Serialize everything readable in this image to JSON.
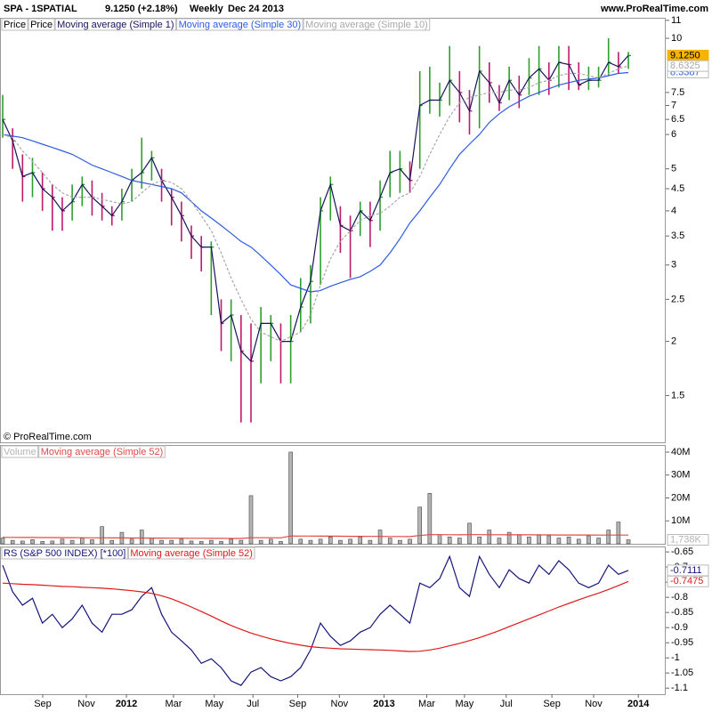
{
  "header": {
    "symbol": "SPA - 1SPATIAL",
    "quote": "9.1250 (+2.18%)",
    "period": "Weekly",
    "date": "Dec 24 2013",
    "site": "www.ProRealTime.com"
  },
  "chart_data": [
    {
      "type": "ohlc",
      "title": "Price",
      "log": true,
      "watermark": "© ProRealTime.com",
      "ylim": [
        1.17,
        11.15
      ],
      "yticks": [
        1.5,
        2,
        2.5,
        3,
        3.5,
        4,
        4.5,
        5,
        6,
        6.5,
        7,
        7.5,
        10,
        11
      ],
      "up_color": "#2e9e2e",
      "down_color": "#c0186e",
      "series": [
        {
          "name": "Price",
          "type": "ohlc",
          "high": [
            7.4,
            6.2,
            5.4,
            5.3,
            4.9,
            4.6,
            4.3,
            4.6,
            4.8,
            4.7,
            4.4,
            4.1,
            4.5,
            5.0,
            5.9,
            5.5,
            5.0,
            4.5,
            4.2,
            3.7,
            3.5,
            3.4,
            2.5,
            2.5,
            2.3,
            2.2,
            2.4,
            2.3,
            2.2,
            2.3,
            2.8,
            3.0,
            4.3,
            4.8,
            4.1,
            3.9,
            4.2,
            4.2,
            4.7,
            5.5,
            5.5,
            5.2,
            8.4,
            8.6,
            7.9,
            9.6,
            8.4,
            7.6,
            9.6,
            8.8,
            7.8,
            8.6,
            8.2,
            9.0,
            9.6,
            8.8,
            9.6,
            9.6,
            8.8,
            8.6,
            8.6,
            10.0,
            9.3,
            9.3
          ],
          "low": [
            5.9,
            5.0,
            4.2,
            4.3,
            4.0,
            3.6,
            3.6,
            3.8,
            4.1,
            3.9,
            3.8,
            3.7,
            3.8,
            4.2,
            4.5,
            4.7,
            4.2,
            3.7,
            3.4,
            3.1,
            2.9,
            2.3,
            1.9,
            1.8,
            1.3,
            1.3,
            1.6,
            1.8,
            1.6,
            1.6,
            2.1,
            2.2,
            2.7,
            3.8,
            3.2,
            2.8,
            3.5,
            3.3,
            3.6,
            4.3,
            4.4,
            4.4,
            5.0,
            6.7,
            6.6,
            7.0,
            6.4,
            6.0,
            6.2,
            7.1,
            6.8,
            7.2,
            6.9,
            7.4,
            7.4,
            7.4,
            7.7,
            7.6,
            7.6,
            7.6,
            7.7,
            8.2,
            8.3,
            8.5
          ],
          "values": [
            6.5,
            5.8,
            4.8,
            4.9,
            4.5,
            4.3,
            4.0,
            4.2,
            4.6,
            4.3,
            4.1,
            3.9,
            4.2,
            4.7,
            4.9,
            5.3,
            4.7,
            4.3,
            3.9,
            3.5,
            3.3,
            3.3,
            2.2,
            2.3,
            1.9,
            1.8,
            2.2,
            2.2,
            2.0,
            2.0,
            2.4,
            2.75,
            4.0,
            4.6,
            3.7,
            3.6,
            4.0,
            3.8,
            4.3,
            4.9,
            5.0,
            4.7,
            7.0,
            7.2,
            7.2,
            8.0,
            7.5,
            6.8,
            8.4,
            7.9,
            7.1,
            8.0,
            7.4,
            8.1,
            8.5,
            8.0,
            8.8,
            8.7,
            7.8,
            8.0,
            8.0,
            8.8,
            8.6,
            9.125
          ]
        },
        {
          "name": "Moving average (Simple 1)",
          "type": "line",
          "color": "#14145a",
          "tag": true,
          "tag_fill": "#f5b400",
          "last_label": "9.1250",
          "values": [
            6.5,
            5.8,
            4.8,
            4.9,
            4.5,
            4.3,
            4.0,
            4.2,
            4.6,
            4.3,
            4.1,
            3.9,
            4.2,
            4.7,
            4.9,
            5.3,
            4.7,
            4.3,
            3.9,
            3.5,
            3.3,
            3.3,
            2.2,
            2.3,
            1.9,
            1.8,
            2.2,
            2.2,
            2.0,
            2.0,
            2.4,
            2.75,
            4.0,
            4.6,
            3.7,
            3.6,
            4.0,
            3.8,
            4.3,
            4.9,
            5.0,
            4.7,
            7.0,
            7.2,
            7.2,
            8.0,
            7.5,
            6.8,
            8.4,
            7.9,
            7.1,
            8.0,
            7.4,
            8.1,
            8.5,
            8.0,
            8.8,
            8.7,
            7.8,
            8.0,
            8.0,
            8.8,
            8.6,
            9.125
          ]
        },
        {
          "name": "Moving average (Simple 30)",
          "type": "line",
          "color": "#2d5be3",
          "tag": true,
          "values": [
            6.0,
            5.95,
            5.9,
            5.8,
            5.7,
            5.6,
            5.5,
            5.4,
            5.25,
            5.1,
            5.0,
            4.9,
            4.8,
            4.7,
            4.65,
            4.6,
            4.55,
            4.5,
            4.4,
            4.2,
            4.0,
            3.85,
            3.7,
            3.55,
            3.4,
            3.3,
            3.15,
            3.0,
            2.85,
            2.7,
            2.65,
            2.6,
            2.62,
            2.68,
            2.73,
            2.78,
            2.82,
            2.9,
            3.0,
            3.2,
            3.45,
            3.75,
            4.0,
            4.3,
            4.6,
            5.0,
            5.4,
            5.7,
            6.0,
            6.4,
            6.7,
            6.95,
            7.15,
            7.35,
            7.5,
            7.65,
            7.8,
            7.9,
            8.0,
            8.05,
            8.1,
            8.2,
            8.3,
            8.3387
          ]
        },
        {
          "name": "Moving average (Simple 10)",
          "type": "line",
          "color": "#a8a8a8",
          "dash": true,
          "tag": true,
          "values": [
            6.0,
            5.9,
            5.5,
            5.2,
            4.9,
            4.6,
            4.4,
            4.3,
            4.3,
            4.3,
            4.25,
            4.2,
            4.15,
            4.2,
            4.4,
            4.6,
            4.7,
            4.65,
            4.5,
            4.2,
            3.9,
            3.6,
            3.2,
            2.8,
            2.5,
            2.25,
            2.1,
            2.05,
            2.0,
            2.05,
            2.1,
            2.3,
            2.7,
            3.1,
            3.4,
            3.6,
            3.8,
            3.9,
            3.95,
            4.1,
            4.3,
            4.4,
            4.8,
            5.4,
            6.0,
            6.6,
            7.1,
            7.3,
            7.4,
            7.5,
            7.5,
            7.6,
            7.6,
            7.7,
            7.9,
            8.0,
            8.2,
            8.3,
            8.3,
            8.2,
            8.1,
            8.3,
            8.5,
            8.6325
          ]
        }
      ]
    },
    {
      "type": "bar",
      "ylim": [
        0,
        43100000
      ],
      "yticks": [
        {
          "value": 10000000,
          "label": "10M"
        },
        {
          "value": 20000000,
          "label": "20M"
        },
        {
          "value": 30000000,
          "label": "30M"
        },
        {
          "value": 40000000,
          "label": "40M"
        }
      ],
      "series": [
        {
          "name": "Volume",
          "type": "bar",
          "color": "#b4b4b4",
          "tag": true,
          "last_label": "1,738K",
          "values": [
            2500000,
            1500000,
            1200000,
            1800000,
            1000000,
            1200000,
            2000000,
            1500000,
            2500000,
            1800000,
            7500000,
            1500000,
            5000000,
            2000000,
            6000000,
            2500000,
            1500000,
            1500000,
            2000000,
            1200000,
            1000000,
            1500000,
            1000000,
            2000000,
            1500000,
            21000000,
            1500000,
            2000000,
            1000000,
            40000000,
            2000000,
            1500000,
            2000000,
            3000000,
            1500000,
            2000000,
            3000000,
            1500000,
            6000000,
            2500000,
            1500000,
            2000000,
            16000000,
            22000000,
            4000000,
            3000000,
            2500000,
            9000000,
            3000000,
            6000000,
            2500000,
            5000000,
            4000000,
            3000000,
            4000000,
            3500000,
            2500000,
            3000000,
            2000000,
            3500000,
            2500000,
            6000000,
            9500000,
            1738000
          ]
        },
        {
          "name": "Moving average (Simple 52)",
          "type": "line",
          "color": "#e04848",
          "values": [
            2800000,
            2780000,
            2760000,
            2740000,
            2720000,
            2700000,
            2680000,
            2660000,
            2640000,
            2620000,
            2600000,
            2580000,
            2560000,
            2540000,
            2520000,
            2500000,
            2480000,
            2460000,
            2440000,
            2420000,
            2400000,
            2380000,
            2360000,
            2340000,
            2320000,
            2650000,
            2640000,
            2630000,
            2620000,
            3400000,
            3380000,
            3360000,
            3340000,
            3320000,
            3300000,
            3280000,
            3260000,
            3240000,
            3220000,
            3200000,
            3180000,
            3160000,
            3600000,
            4000000,
            3980000,
            3960000,
            3940000,
            4000000,
            3980000,
            3960000,
            3950000,
            3940000,
            3930000,
            3920000,
            3900000,
            3880000,
            3860000,
            3850000,
            3840000,
            3830000,
            3820000,
            3810000,
            3800000,
            3790000
          ]
        }
      ]
    },
    {
      "type": "line",
      "ylim": [
        -1.12,
        -0.632
      ],
      "yticks": [
        -0.65,
        -0.7,
        -0.75,
        -0.8,
        -0.85,
        -0.9,
        -0.95,
        -1,
        -1.05,
        -1.1
      ],
      "xlim": [
        -0.27,
        66.76
      ],
      "xticks": [
        {
          "value": 4.03,
          "label": "Sep"
        },
        {
          "value": 8.42,
          "label": "Nov"
        },
        {
          "value": 12.46,
          "label": "2012"
        },
        {
          "value": 17.2,
          "label": "Mar"
        },
        {
          "value": 21.3,
          "label": "May"
        },
        {
          "value": 25.2,
          "label": "Jul"
        },
        {
          "value": 29.7,
          "label": "Sep"
        },
        {
          "value": 33.9,
          "label": "Nov"
        },
        {
          "value": 38.4,
          "label": "2013"
        },
        {
          "value": 42.7,
          "label": "Mar"
        },
        {
          "value": 46.5,
          "label": "May"
        },
        {
          "value": 50.7,
          "label": "Jul"
        },
        {
          "value": 55.3,
          "label": "Sep"
        },
        {
          "value": 59.5,
          "label": "Nov"
        },
        {
          "value": 64.0,
          "label": "2014"
        }
      ],
      "series": [
        {
          "name": "RS (S&P 500 INDEX) [*100]",
          "type": "line",
          "color": "#14147a",
          "tag": true,
          "values": [
            -0.694,
            -0.782,
            -0.826,
            -0.803,
            -0.885,
            -0.856,
            -0.9,
            -0.871,
            -0.826,
            -0.885,
            -0.915,
            -0.856,
            -0.856,
            -0.841,
            -0.797,
            -0.768,
            -0.856,
            -0.915,
            -0.944,
            -0.974,
            -1.018,
            -1.003,
            -1.032,
            -1.076,
            -1.091,
            -1.047,
            -1.032,
            -1.062,
            -1.076,
            -1.062,
            -1.032,
            -0.974,
            -0.885,
            -0.929,
            -0.959,
            -0.944,
            -0.915,
            -0.9,
            -0.856,
            -0.826,
            -0.856,
            -0.885,
            -0.753,
            -0.768,
            -0.738,
            -0.665,
            -0.768,
            -0.797,
            -0.665,
            -0.724,
            -0.768,
            -0.709,
            -0.738,
            -0.753,
            -0.694,
            -0.724,
            -0.679,
            -0.709,
            -0.753,
            -0.768,
            -0.753,
            -0.694,
            -0.724,
            -0.7111
          ]
        },
        {
          "name": "Moving average (Simple 52)",
          "type": "line",
          "color": "#e01818",
          "tag": true,
          "values": [
            -0.753,
            -0.755,
            -0.757,
            -0.758,
            -0.76,
            -0.762,
            -0.764,
            -0.765,
            -0.767,
            -0.768,
            -0.77,
            -0.772,
            -0.775,
            -0.778,
            -0.782,
            -0.787,
            -0.795,
            -0.805,
            -0.818,
            -0.832,
            -0.847,
            -0.862,
            -0.878,
            -0.893,
            -0.906,
            -0.918,
            -0.928,
            -0.937,
            -0.945,
            -0.952,
            -0.958,
            -0.963,
            -0.966,
            -0.968,
            -0.97,
            -0.971,
            -0.972,
            -0.973,
            -0.974,
            -0.975,
            -0.977,
            -0.979,
            -0.978,
            -0.974,
            -0.968,
            -0.96,
            -0.952,
            -0.943,
            -0.933,
            -0.922,
            -0.91,
            -0.897,
            -0.884,
            -0.871,
            -0.858,
            -0.845,
            -0.832,
            -0.82,
            -0.808,
            -0.797,
            -0.786,
            -0.774,
            -0.761,
            -0.7475
          ]
        }
      ]
    }
  ]
}
